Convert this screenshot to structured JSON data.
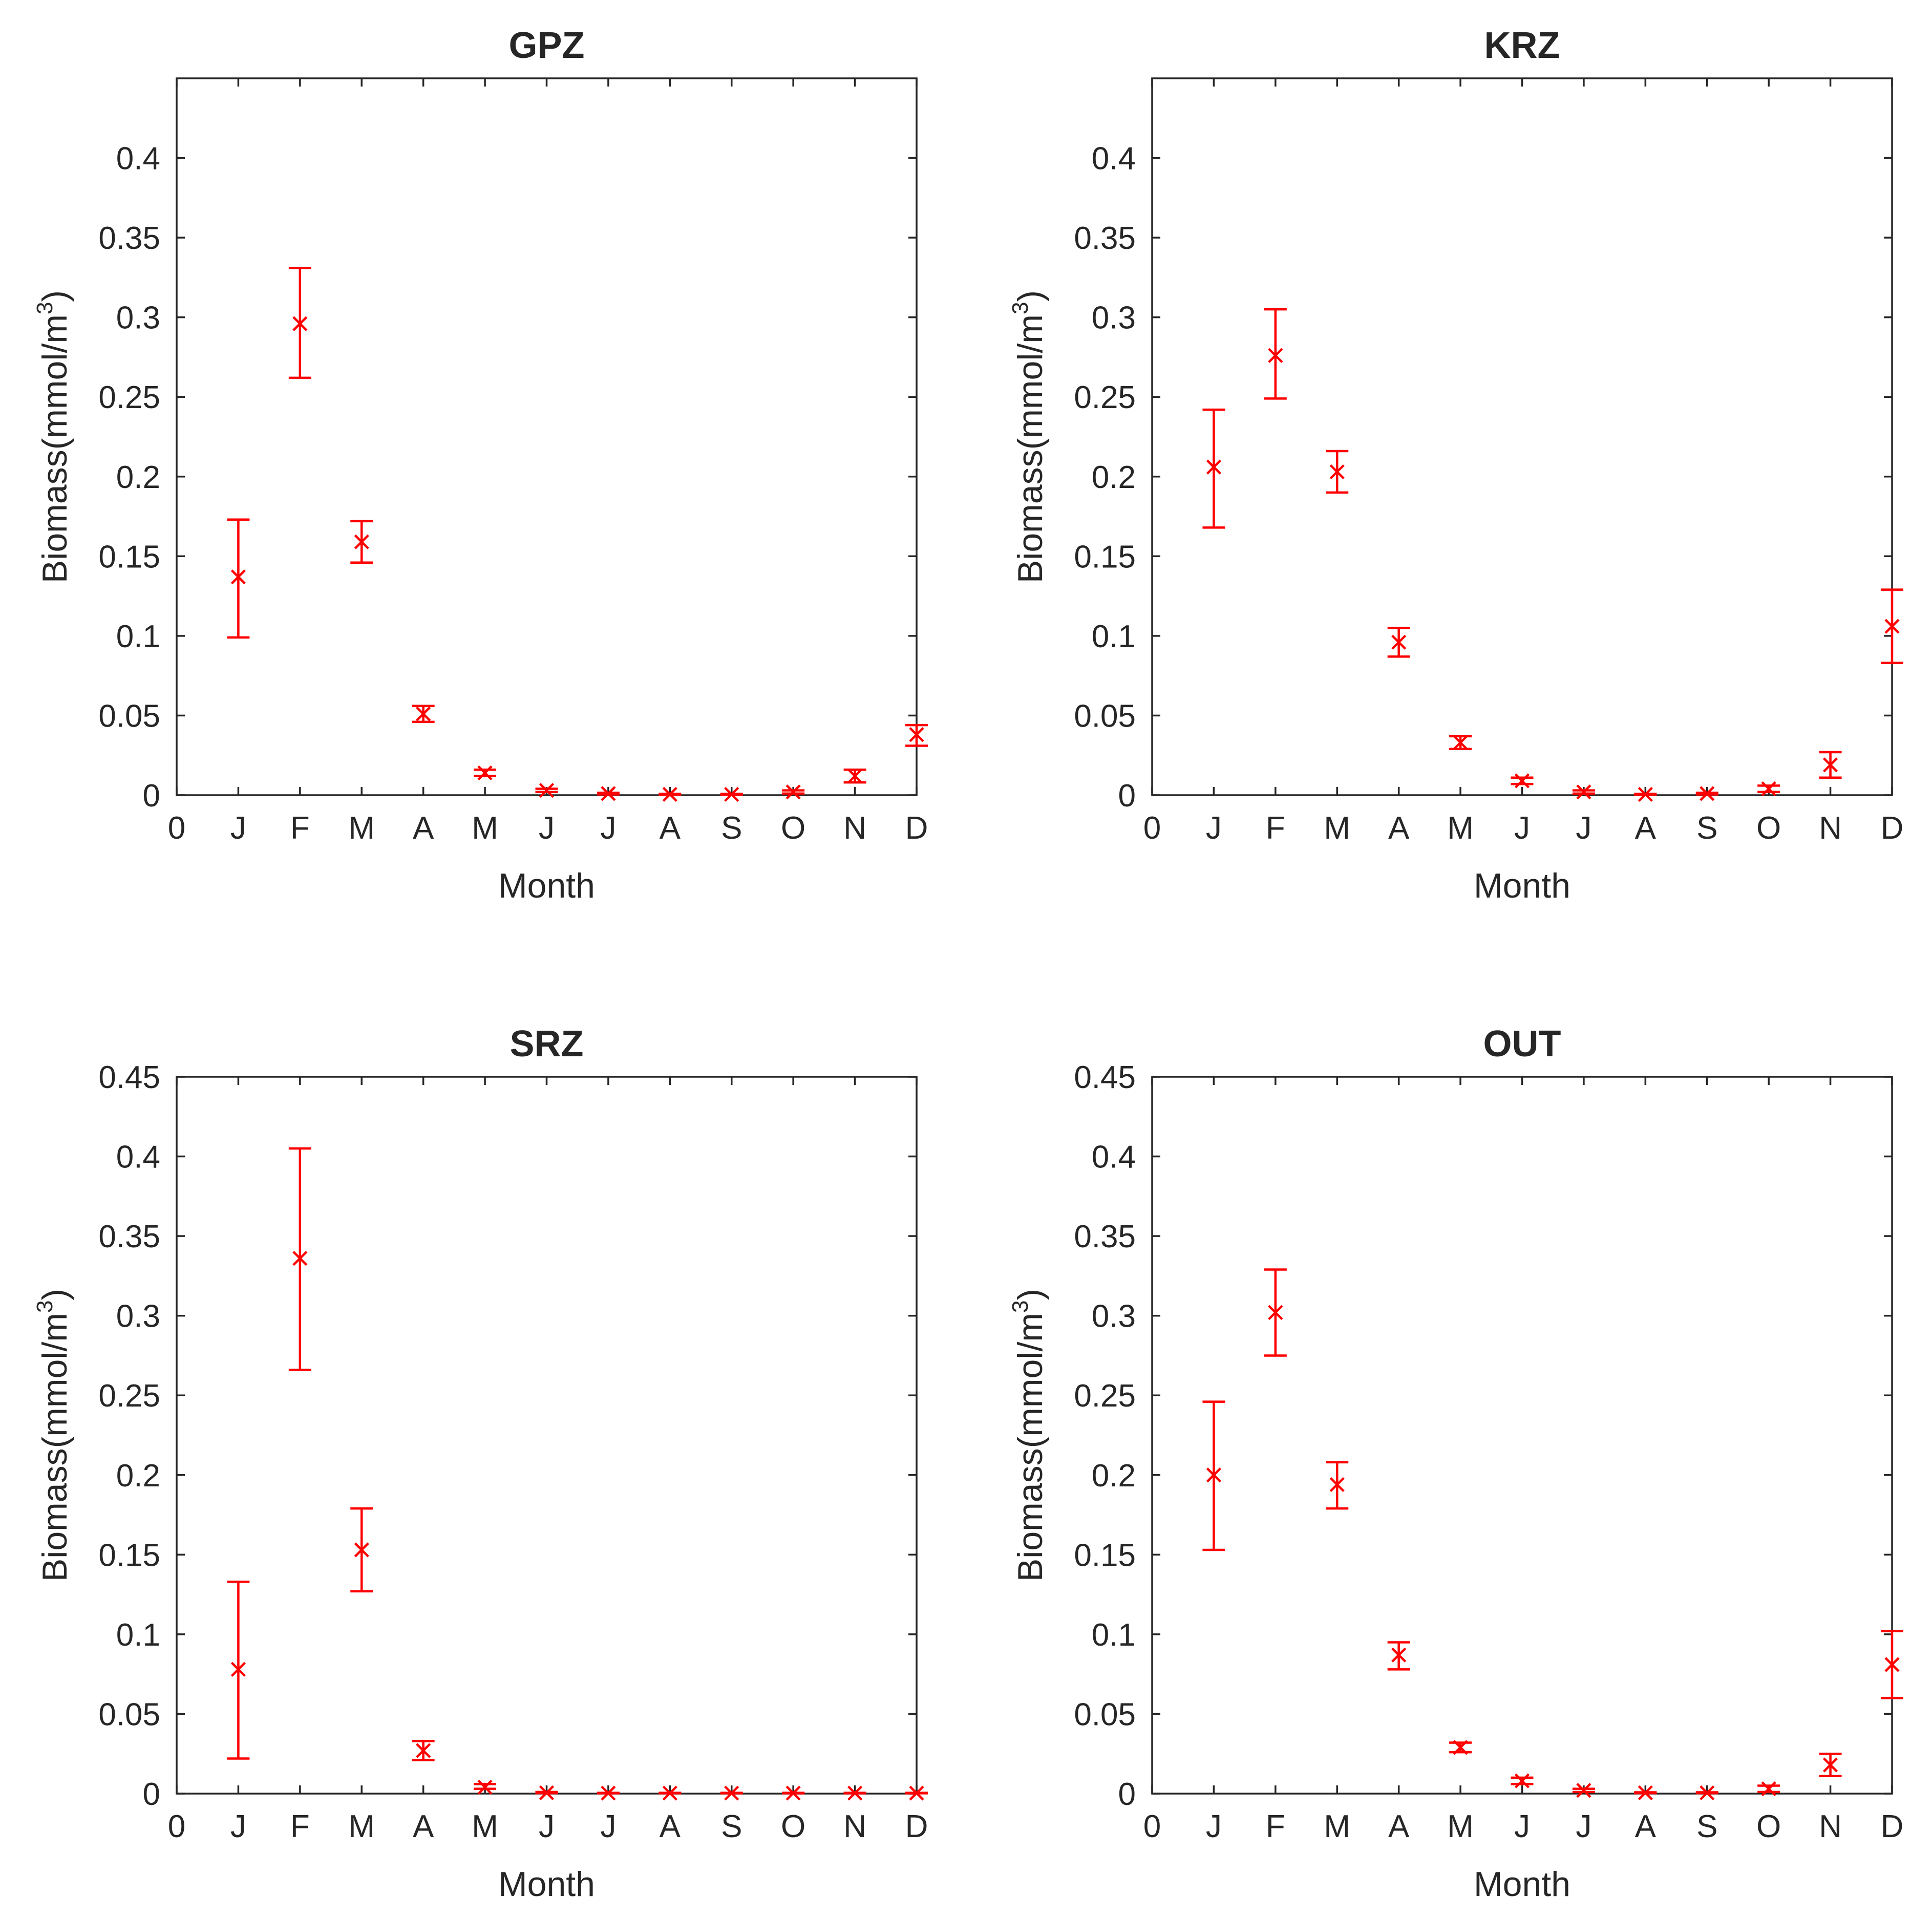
{
  "chart_data": [
    {
      "type": "errorbar",
      "title": "GPZ",
      "xlabel": "Month",
      "ylabel": "Biomass(mmol/m",
      "ylabel_sup": "3",
      "ylabel_close": ")",
      "x_ticks": [
        "0",
        "J",
        "F",
        "M",
        "A",
        "M",
        "J",
        "J",
        "A",
        "S",
        "O",
        "N",
        "D"
      ],
      "y_ticks": [
        "0",
        "0.05",
        "0.1",
        "0.15",
        "0.2",
        "0.25",
        "0.3",
        "0.35",
        "0.4"
      ],
      "xlim": [
        0,
        12
      ],
      "ylim": [
        0,
        0.45
      ],
      "marker": "x",
      "color": "#ff0000",
      "x": [
        1,
        2,
        3,
        4,
        5,
        6,
        7,
        8,
        9,
        10,
        11,
        12
      ],
      "values": [
        0.137,
        0.296,
        0.159,
        0.051,
        0.014,
        0.003,
        0.001,
        0.0005,
        0.0005,
        0.002,
        0.012,
        0.038
      ],
      "lower": [
        0.099,
        0.262,
        0.146,
        0.046,
        0.012,
        0.002,
        0.0005,
        0.0003,
        0.0003,
        0.001,
        0.008,
        0.031
      ],
      "upper": [
        0.173,
        0.331,
        0.172,
        0.056,
        0.016,
        0.004,
        0.0015,
        0.0008,
        0.0008,
        0.003,
        0.016,
        0.044
      ]
    },
    {
      "type": "errorbar",
      "title": "KRZ",
      "xlabel": "Month",
      "ylabel": "Biomass(mmol/m",
      "ylabel_sup": "3",
      "ylabel_close": ")",
      "x_ticks": [
        "0",
        "J",
        "F",
        "M",
        "A",
        "M",
        "J",
        "J",
        "A",
        "S",
        "O",
        "N",
        "D"
      ],
      "y_ticks": [
        "0",
        "0.05",
        "0.1",
        "0.15",
        "0.2",
        "0.25",
        "0.3",
        "0.35",
        "0.4"
      ],
      "xlim": [
        0,
        12
      ],
      "ylim": [
        0,
        0.45
      ],
      "marker": "x",
      "color": "#ff0000",
      "x": [
        1,
        2,
        3,
        4,
        5,
        6,
        7,
        8,
        9,
        10,
        11,
        12
      ],
      "values": [
        0.206,
        0.276,
        0.203,
        0.096,
        0.033,
        0.009,
        0.002,
        0.0005,
        0.001,
        0.004,
        0.019,
        0.106
      ],
      "lower": [
        0.168,
        0.249,
        0.19,
        0.087,
        0.029,
        0.007,
        0.001,
        0.0003,
        0.0005,
        0.002,
        0.011,
        0.083
      ],
      "upper": [
        0.242,
        0.305,
        0.216,
        0.105,
        0.037,
        0.011,
        0.003,
        0.0008,
        0.0015,
        0.006,
        0.027,
        0.129
      ]
    },
    {
      "type": "errorbar",
      "title": "SRZ",
      "xlabel": "Month",
      "ylabel": "Biomass(mmol/m",
      "ylabel_sup": "3",
      "ylabel_close": ")",
      "x_ticks": [
        "0",
        "J",
        "F",
        "M",
        "A",
        "M",
        "J",
        "J",
        "A",
        "S",
        "O",
        "N",
        "D"
      ],
      "y_ticks": [
        "0",
        "0.05",
        "0.1",
        "0.15",
        "0.2",
        "0.25",
        "0.3",
        "0.35",
        "0.4",
        "0.45"
      ],
      "xlim": [
        0,
        12
      ],
      "ylim": [
        0,
        0.45
      ],
      "marker": "x",
      "color": "#ff0000",
      "x": [
        1,
        2,
        3,
        4,
        5,
        6,
        7,
        8,
        9,
        10,
        11,
        12
      ],
      "values": [
        0.078,
        0.336,
        0.153,
        0.027,
        0.004,
        0.0005,
        0.0003,
        0.0003,
        0.0003,
        0.0003,
        0.0003,
        0.0003
      ],
      "lower": [
        0.022,
        0.266,
        0.127,
        0.021,
        0.003,
        0.0003,
        0.0002,
        0.0002,
        0.0002,
        0.0002,
        0.0002,
        0.0002
      ],
      "upper": [
        0.133,
        0.405,
        0.179,
        0.033,
        0.006,
        0.001,
        0.0005,
        0.0005,
        0.0005,
        0.0005,
        0.0005,
        0.0005
      ]
    },
    {
      "type": "errorbar",
      "title": "OUT",
      "xlabel": "Month",
      "ylabel": "Biomass(mmol/m",
      "ylabel_sup": "3",
      "ylabel_close": ")",
      "x_ticks": [
        "0",
        "J",
        "F",
        "M",
        "A",
        "M",
        "J",
        "J",
        "A",
        "S",
        "O",
        "N",
        "D"
      ],
      "y_ticks": [
        "0",
        "0.05",
        "0.1",
        "0.15",
        "0.2",
        "0.25",
        "0.3",
        "0.35",
        "0.4",
        "0.45"
      ],
      "xlim": [
        0,
        12
      ],
      "ylim": [
        0,
        0.45
      ],
      "marker": "x",
      "color": "#ff0000",
      "x": [
        1,
        2,
        3,
        4,
        5,
        6,
        7,
        8,
        9,
        10,
        11,
        12
      ],
      "values": [
        0.2,
        0.302,
        0.194,
        0.087,
        0.029,
        0.008,
        0.002,
        0.0005,
        0.0005,
        0.003,
        0.018,
        0.081
      ],
      "lower": [
        0.153,
        0.275,
        0.179,
        0.078,
        0.026,
        0.006,
        0.001,
        0.0003,
        0.0003,
        0.001,
        0.011,
        0.06
      ],
      "upper": [
        0.246,
        0.329,
        0.208,
        0.095,
        0.032,
        0.01,
        0.003,
        0.0008,
        0.0008,
        0.005,
        0.025,
        0.102
      ]
    }
  ]
}
